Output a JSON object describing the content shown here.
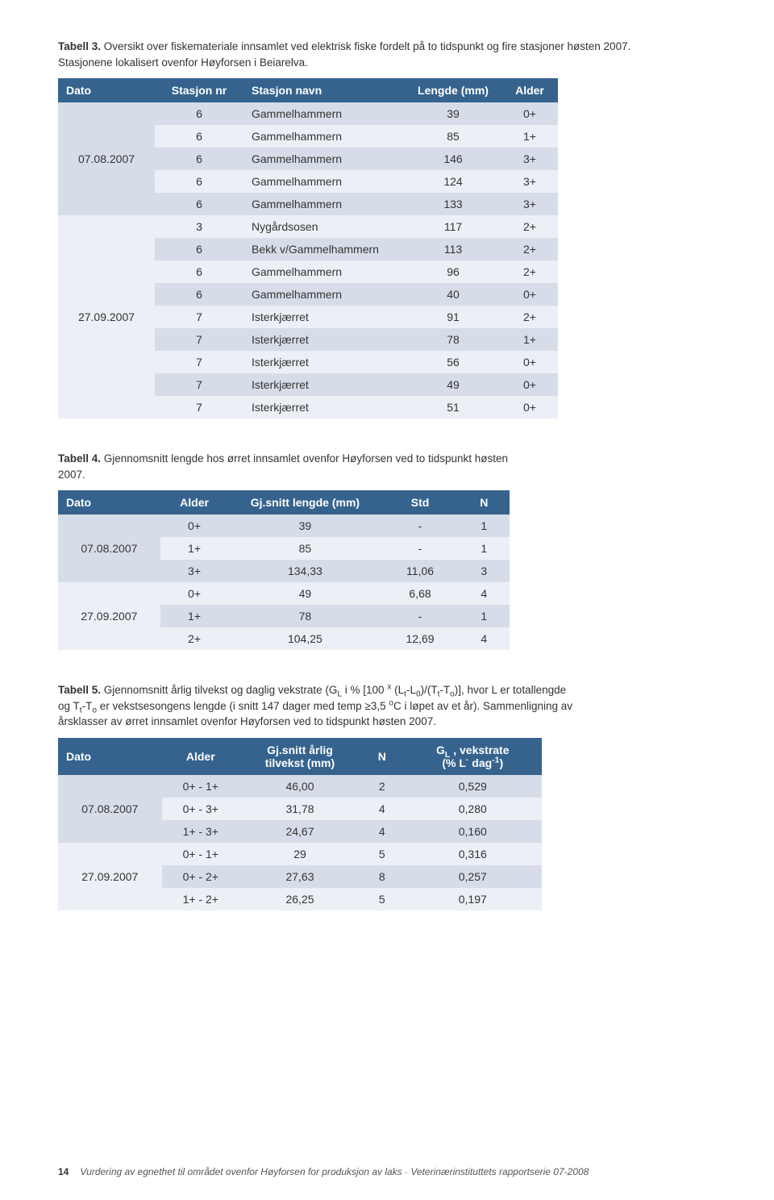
{
  "table3": {
    "caption_bold": "Tabell 3.",
    "caption_rest": " Oversikt over fiskemateriale innsamlet ved elektrisk fiske fordelt på to tidspunkt og fire stasjoner høsten 2007. Stasjonene lokalisert ovenfor Høyforsen i Beiarelva.",
    "headers": [
      "Dato",
      "Stasjon nr",
      "Stasjon navn",
      "Lengde (mm)",
      "Alder"
    ],
    "groups": [
      {
        "date": "07.08.2007",
        "rows": [
          [
            "6",
            "Gammelhammern",
            "39",
            "0+"
          ],
          [
            "6",
            "Gammelhammern",
            "85",
            "1+"
          ],
          [
            "6",
            "Gammelhammern",
            "146",
            "3+"
          ],
          [
            "6",
            "Gammelhammern",
            "124",
            "3+"
          ],
          [
            "6",
            "Gammelhammern",
            "133",
            "3+"
          ]
        ]
      },
      {
        "date": "27.09.2007",
        "rows": [
          [
            "3",
            "Nygårdsosen",
            "117",
            "2+"
          ],
          [
            "6",
            "Bekk v/Gammelhammern",
            "113",
            "2+"
          ],
          [
            "6",
            "Gammelhammern",
            "96",
            "2+"
          ],
          [
            "6",
            "Gammelhammern",
            "40",
            "0+"
          ],
          [
            "7",
            "Isterkjærret",
            "91",
            "2+"
          ],
          [
            "7",
            "Isterkjærret",
            "78",
            "1+"
          ],
          [
            "7",
            "Isterkjærret",
            "56",
            "0+"
          ],
          [
            "7",
            "Isterkjærret",
            "49",
            "0+"
          ],
          [
            "7",
            "Isterkjærret",
            "51",
            "0+"
          ]
        ]
      }
    ]
  },
  "table4": {
    "caption_bold": "Tabell 4.",
    "caption_rest": " Gjennomsnitt lengde hos ørret innsamlet ovenfor Høyforsen ved to tidspunkt høsten 2007.",
    "headers": [
      "Dato",
      "Alder",
      "Gj.snitt lengde (mm)",
      "Std",
      "N"
    ],
    "groups": [
      {
        "date": "07.08.2007",
        "rows": [
          [
            "0+",
            "39",
            "-",
            "1"
          ],
          [
            "1+",
            "85",
            "-",
            "1"
          ],
          [
            "3+",
            "134,33",
            "11,06",
            "3"
          ]
        ]
      },
      {
        "date": "27.09.2007",
        "rows": [
          [
            "0+",
            "49",
            "6,68",
            "4"
          ],
          [
            "1+",
            "78",
            "-",
            "1"
          ],
          [
            "2+",
            "104,25",
            "12,69",
            "4"
          ]
        ]
      }
    ]
  },
  "table5": {
    "caption_bold": "Tabell 5.",
    "caption_rest_html": " Gjennomsnitt årlig tilvekst og daglig vekstrate (G<sub>L</sub> i % [100 <sup>x</sup> (L<sub>t</sub>-L<sub>0</sub>)/(T<sub>t</sub>-T<sub>o</sub>)], hvor L er totallengde og T<sub>t</sub>-T<sub>o</sub> er vekstsesongens lengde (i snitt 147 dager med temp ≥3,5 <sup>o</sup>C i løpet av et år). Sammenligning av årsklasser av ørret innsamlet ovenfor Høyforsen ved to tidspunkt høsten 2007.",
    "headers_html": [
      "Dato",
      "Alder",
      "Gj.snitt årlig<br>tilvekst (mm)",
      "N",
      "G<sub>L</sub> , vekstrate<br>(% L<sup>·</sup> dag<sup>-1</sup>)"
    ],
    "groups": [
      {
        "date": "07.08.2007",
        "rows": [
          [
            "0+ - 1+",
            "46,00",
            "2",
            "0,529"
          ],
          [
            "0+ - 3+",
            "31,78",
            "4",
            "0,280"
          ],
          [
            "1+ - 3+",
            "24,67",
            "4",
            "0,160"
          ]
        ]
      },
      {
        "date": "27.09.2007",
        "rows": [
          [
            "0+ - 1+",
            "29",
            "5",
            "0,316"
          ],
          [
            "0+ - 2+",
            "27,63",
            "8",
            "0,257"
          ],
          [
            "1+ - 2+",
            "26,25",
            "5",
            "0,197"
          ]
        ]
      }
    ]
  },
  "footer": {
    "page": "14",
    "text": "Vurdering av egnethet til området ovenfor Høyforsen for produksjon av laks · Veterinærinstituttets rapportserie 07-2008"
  },
  "colors": {
    "header_bg": "#36638e",
    "row_dark": "#d7dde8",
    "row_light": "#eceff5",
    "text": "#333333"
  }
}
